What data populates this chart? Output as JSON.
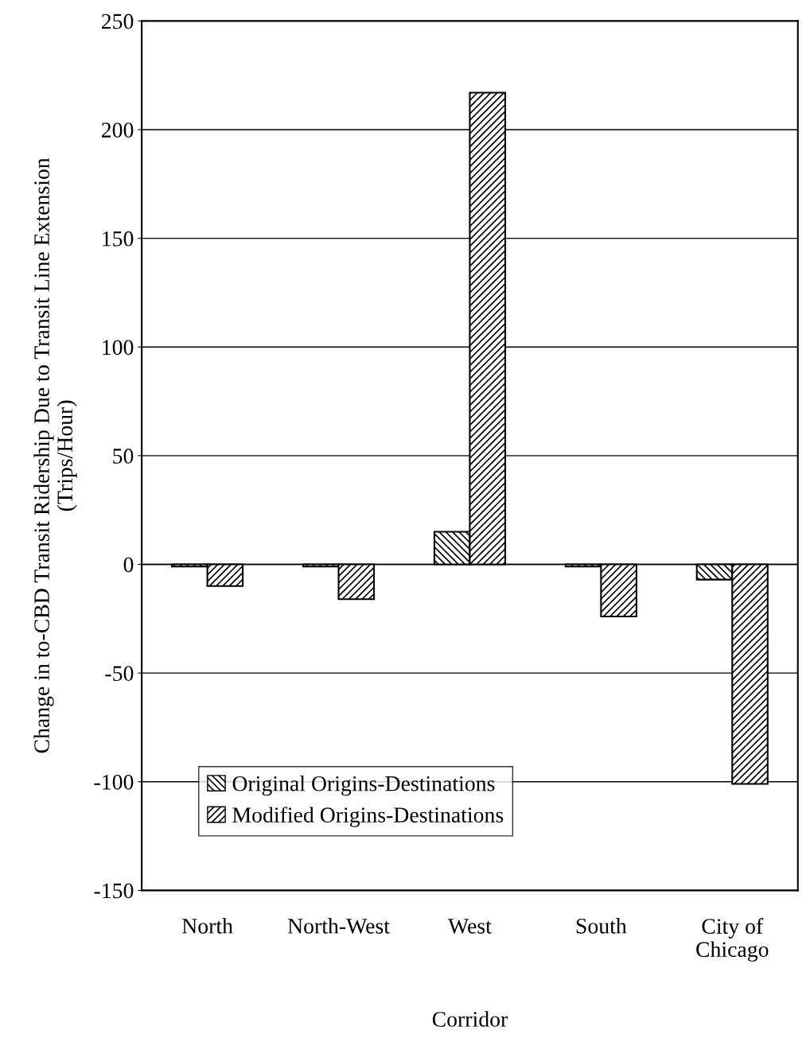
{
  "chart_data": {
    "type": "bar",
    "xlabel": "Corridor",
    "ylabel": "Change in to-CBD Transit Ridership Due to Transit Line Extension\n(Trips/Hour)",
    "categories": [
      "North",
      "North-West",
      "West",
      "South",
      "City of\nChicago"
    ],
    "series": [
      {
        "name": "Original Origins-Destinations",
        "color": "#000000",
        "values": [
          -1,
          -1,
          15,
          -1,
          -7
        ]
      },
      {
        "name": "Modified Origins-Destinations",
        "color": "#000000",
        "values": [
          -10,
          -16,
          217,
          -24,
          -101
        ]
      }
    ],
    "ylim": [
      -150,
      250
    ],
    "yticks": [
      -150,
      -100,
      -50,
      0,
      50,
      100,
      150,
      200,
      250
    ],
    "grid": "y",
    "legend": "bottom left"
  }
}
